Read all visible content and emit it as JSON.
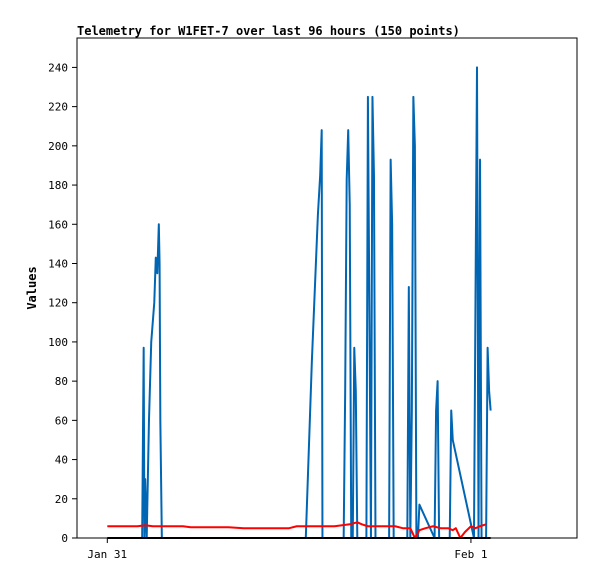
{
  "chart_data": {
    "type": "line",
    "title": "Telemetry for W1FET-7 over last 96 hours (150 points)",
    "ylabel": "Values",
    "xlabel": "",
    "ylim": [
      0,
      255
    ],
    "xlim": [
      -2,
      31
    ],
    "yticks": [
      0,
      20,
      40,
      60,
      80,
      100,
      120,
      140,
      160,
      180,
      200,
      220,
      240
    ],
    "xticks": [
      {
        "label": "Jan 31",
        "x": 0
      },
      {
        "label": "Feb 1",
        "x": 24
      }
    ],
    "grid": false,
    "series": [
      {
        "name": "",
        "color": "#0066b3",
        "x": [
          0.0,
          2.3,
          2.4,
          2.45,
          2.5,
          2.6,
          2.7,
          2.75,
          2.9,
          3.1,
          3.2,
          3.3,
          3.4,
          3.45,
          3.5,
          3.6,
          3.7,
          3.75,
          13.1,
          13.5,
          13.9,
          14.05,
          14.15,
          14.2,
          14.3,
          14.4,
          15.6,
          15.7,
          15.8,
          15.9,
          16.0,
          16.1,
          16.2,
          16.3,
          16.4,
          16.5,
          17.0,
          17.1,
          17.2,
          17.3,
          17.4,
          17.5,
          17.6,
          17.7,
          18.6,
          18.7,
          18.8,
          18.9,
          19.0,
          19.1,
          19.7,
          19.8,
          19.9,
          20.0,
          20.1,
          20.2,
          20.3,
          20.4,
          20.5,
          20.6,
          21.6,
          21.7,
          21.8,
          21.9,
          22.6,
          22.7,
          22.8,
          24.2,
          24.3,
          24.4,
          24.5,
          24.6,
          24.7,
          25.0,
          25.1,
          25.2,
          25.3
        ],
        "y": [
          0,
          0,
          97,
          0,
          30,
          0,
          40,
          60,
          100,
          120,
          143,
          135,
          160,
          140,
          60,
          0,
          0,
          0,
          0,
          90,
          165,
          185,
          208,
          0,
          0,
          0,
          0,
          75,
          183,
          208,
          170,
          0,
          0,
          97,
          75,
          0,
          0,
          0,
          225,
          113,
          0,
          225,
          185,
          0,
          0,
          193,
          160,
          0,
          0,
          0,
          0,
          0,
          128,
          0,
          65,
          225,
          200,
          0,
          0,
          17,
          0,
          65,
          80,
          0,
          0,
          65,
          50,
          0,
          121,
          240,
          0,
          193,
          0,
          0,
          97,
          75,
          65
        ]
      },
      {
        "name": "",
        "color": "#ff0000",
        "x": [
          0.0,
          1.0,
          1.5,
          2.0,
          2.5,
          3.0,
          4.0,
          5.0,
          5.5,
          7.0,
          8.0,
          9.0,
          11.0,
          12.0,
          12.5,
          13.0,
          14.0,
          15.0,
          16.0,
          16.5,
          16.8,
          17.2,
          18.0,
          19.0,
          19.5,
          20.0,
          20.3,
          20.6,
          21.0,
          21.5,
          22.0,
          22.5,
          22.8,
          23.0,
          23.3,
          23.6,
          24.0,
          24.3,
          24.6,
          25.0
        ],
        "y": [
          6,
          6,
          6,
          6,
          6.5,
          6,
          6,
          6,
          5.5,
          5.5,
          5.5,
          5,
          5,
          5,
          6,
          6,
          6,
          6,
          7,
          8,
          7,
          6,
          6,
          6,
          5,
          5,
          0,
          4,
          5,
          6,
          5,
          5,
          4,
          5,
          0,
          3,
          6,
          5,
          6,
          7
        ]
      },
      {
        "name": "",
        "color": "#000000",
        "x": [
          0.0,
          25.3
        ],
        "y": [
          0,
          0
        ]
      }
    ]
  }
}
